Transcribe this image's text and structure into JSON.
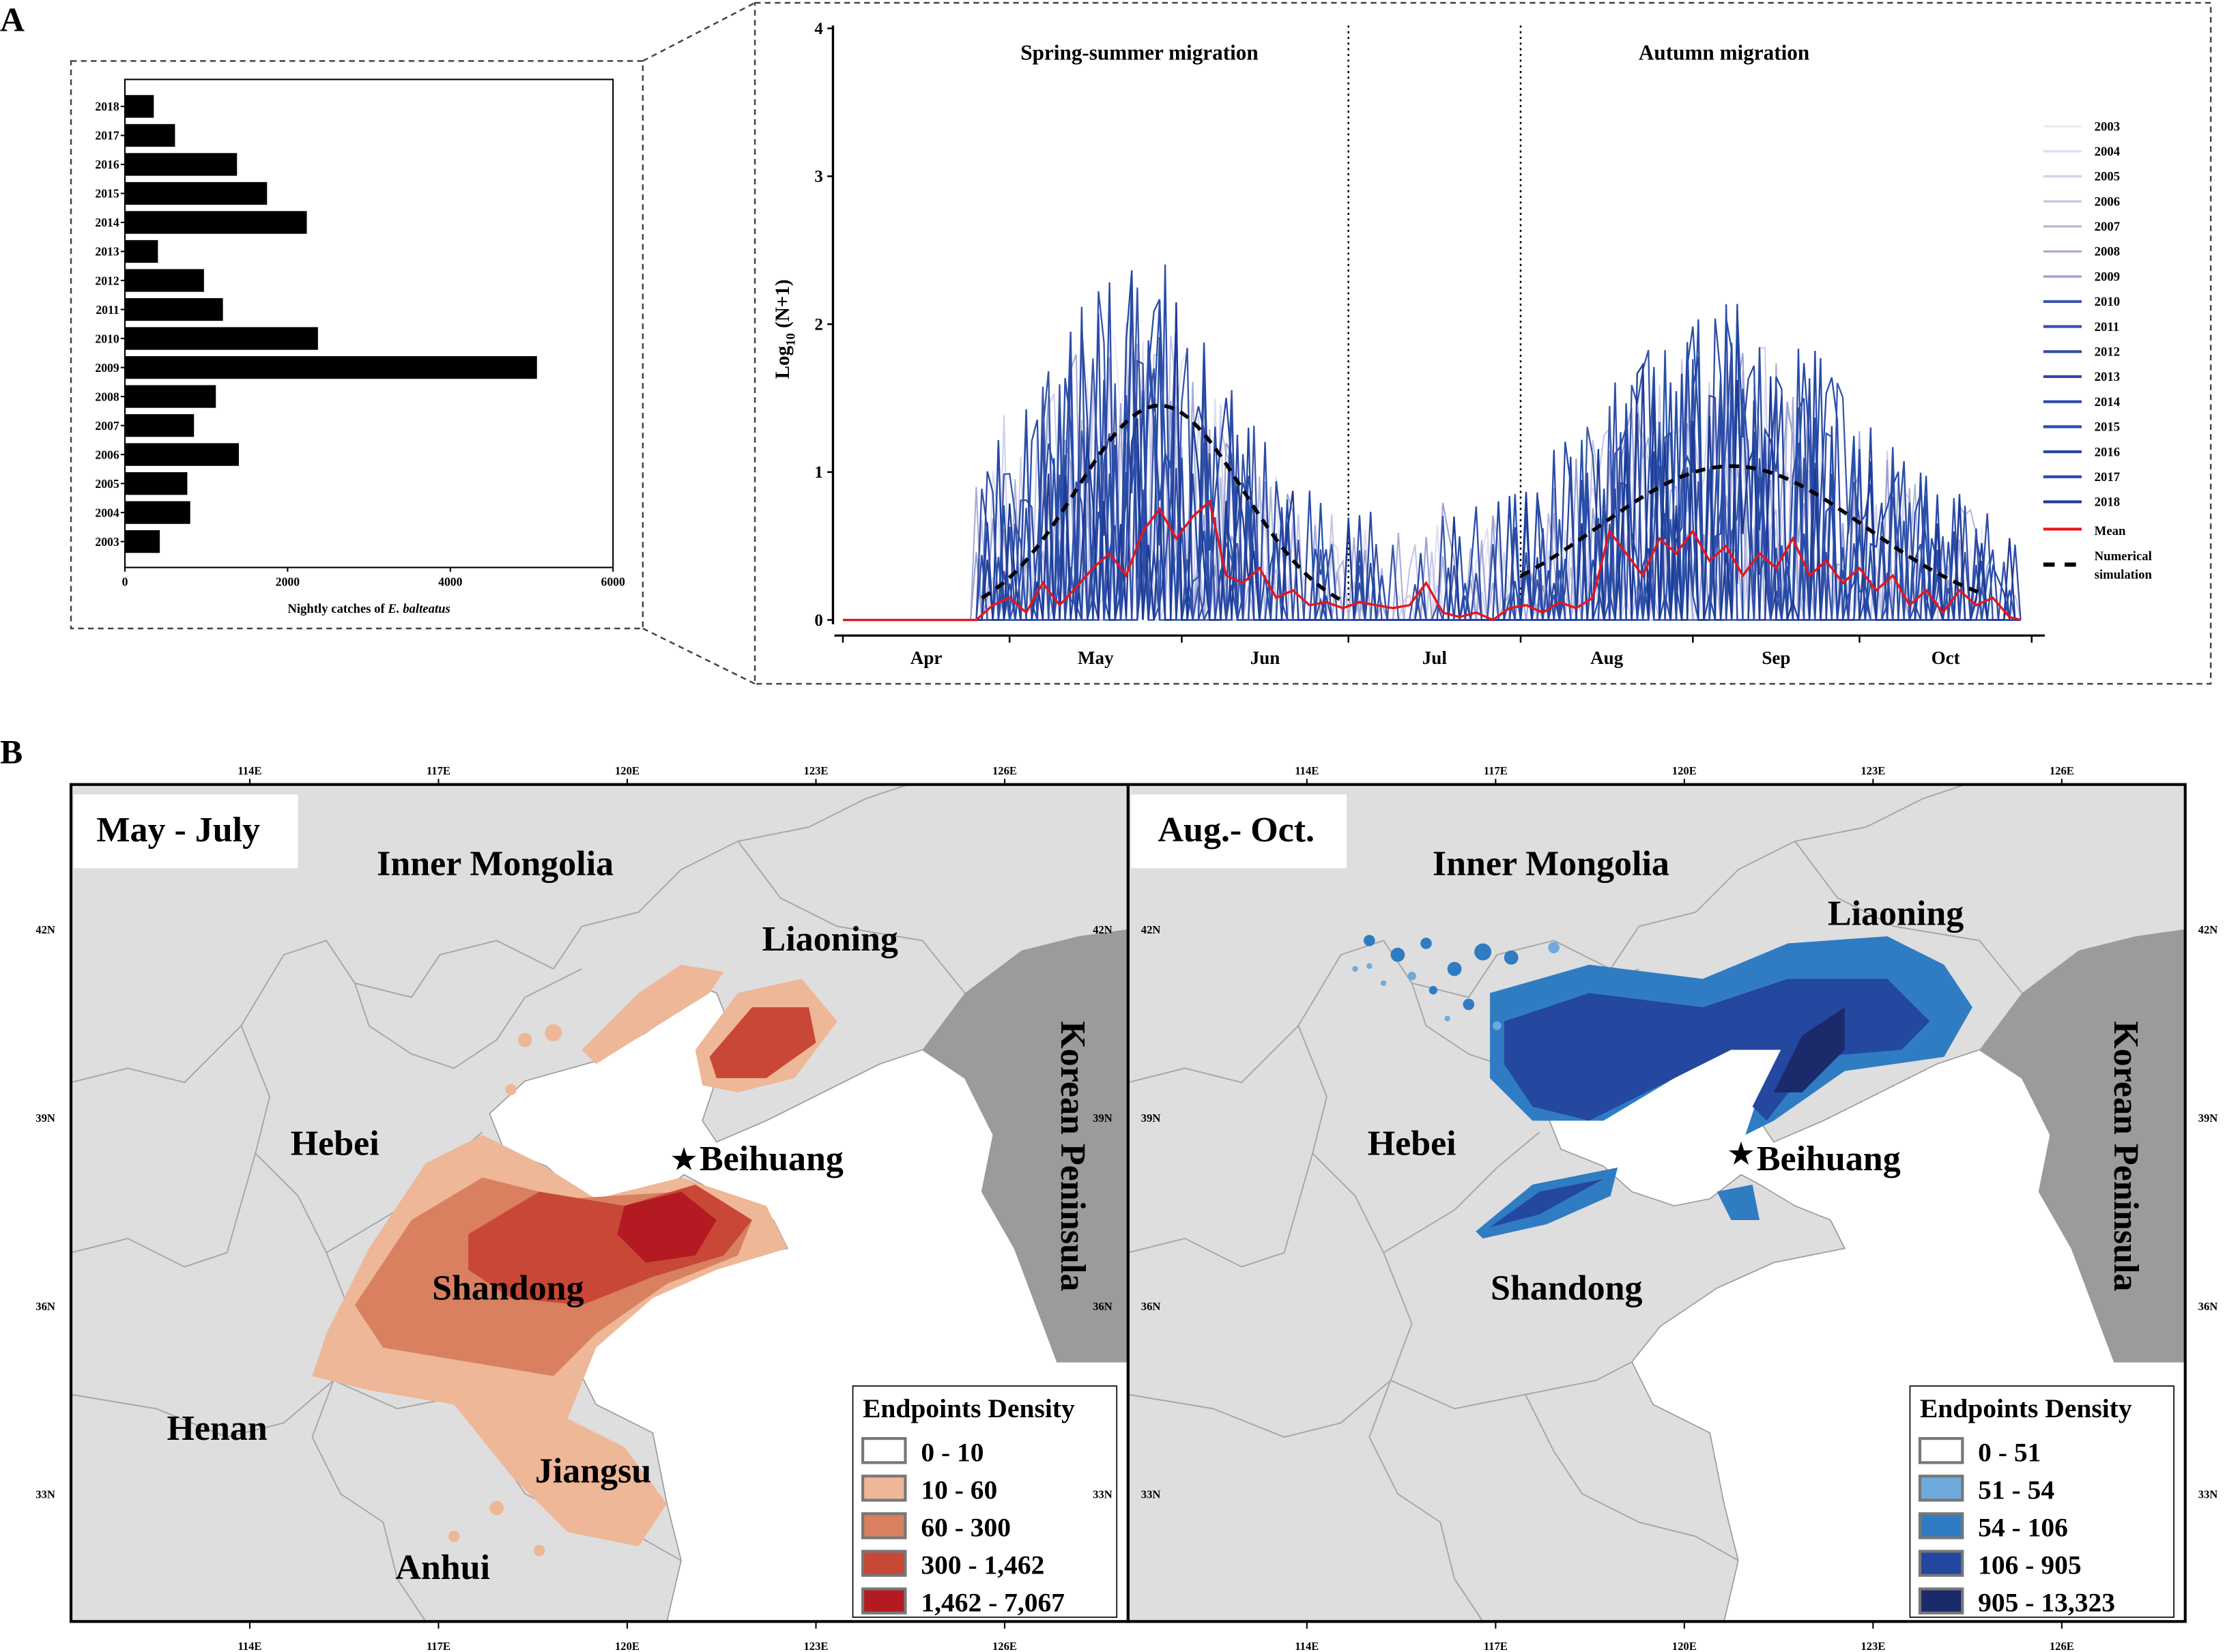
{
  "panel_labels": {
    "a": "A",
    "b": "B"
  },
  "chart_data": [
    {
      "type": "bar",
      "orientation": "horizontal",
      "categories": [
        "2018",
        "2017",
        "2016",
        "2015",
        "2014",
        "2013",
        "2012",
        "2011",
        "2010",
        "2009",
        "2008",
        "2007",
        "2006",
        "2005",
        "2004",
        "2003"
      ],
      "values": [
        355,
        616,
        1378,
        1747,
        2236,
        406,
        972,
        1205,
        2373,
        5065,
        1118,
        849,
        1401,
        767,
        803,
        429
      ],
      "xlabel_prefix": "Nightly catches of ",
      "xlabel_species": "E. balteatus",
      "xlim": [
        0,
        6000
      ],
      "xticks": [
        "0",
        "2000",
        "4000",
        "6000"
      ],
      "bar_color": "#000000"
    },
    {
      "type": "line",
      "ylabel_main": "Log",
      "ylabel_sub": "10",
      "ylabel_rest": " (N+1)",
      "ylim": [
        0,
        4
      ],
      "yticks": [
        "0",
        "1",
        "2",
        "3",
        "4"
      ],
      "months": [
        "Apr",
        "May",
        "Jun",
        "Jul",
        "Aug",
        "Sep",
        "Oct"
      ],
      "x_unit": "day since Apr 1",
      "xlim": [
        0,
        214
      ],
      "period_labels": [
        "Spring-summer migration",
        "Autumn migration"
      ],
      "period_dividers_day": [
        91,
        122
      ],
      "series": [
        {
          "name": "2003",
          "color": "#ebebf6"
        },
        {
          "name": "2004",
          "color": "#dedef0"
        },
        {
          "name": "2005",
          "color": "#d1d2ea"
        },
        {
          "name": "2006",
          "color": "#c3c5e4"
        },
        {
          "name": "2007",
          "color": "#b5b8dd"
        },
        {
          "name": "2008",
          "color": "#a8acd8"
        },
        {
          "name": "2009",
          "color": "#9ca2d3"
        },
        {
          "name": "2010",
          "color": "#3b57a9"
        },
        {
          "name": "2011",
          "color": "#3552a8"
        },
        {
          "name": "2012",
          "color": "#2f4da6"
        },
        {
          "name": "2013",
          "color": "#2b4ba5"
        },
        {
          "name": "2014",
          "color": "#2a4ca7"
        },
        {
          "name": "2015",
          "color": "#2650ab"
        },
        {
          "name": "2016",
          "color": "#2448a3"
        },
        {
          "name": "2017",
          "color": "#2a4ca8"
        },
        {
          "name": "2018",
          "color": "#1d3a94"
        }
      ],
      "mean": {
        "name": "Mean",
        "color": "#e8141c",
        "days": [
          0,
          24,
          27,
          30,
          33,
          36,
          39,
          42,
          45,
          48,
          51,
          54,
          57,
          60,
          63,
          66,
          69,
          72,
          75,
          78,
          81,
          84,
          87,
          90,
          93,
          96,
          99,
          102,
          105,
          108,
          111,
          114,
          117,
          120,
          123,
          126,
          129,
          132,
          135,
          138,
          141,
          144,
          147,
          150,
          153,
          156,
          159,
          162,
          165,
          168,
          171,
          174,
          177,
          180,
          183,
          186,
          189,
          192,
          195,
          198,
          201,
          204,
          207,
          210,
          212
        ],
        "values": [
          0,
          0,
          0.1,
          0.15,
          0.05,
          0.25,
          0.1,
          0.22,
          0.35,
          0.45,
          0.3,
          0.6,
          0.75,
          0.55,
          0.7,
          0.8,
          0.3,
          0.25,
          0.35,
          0.15,
          0.2,
          0.1,
          0.12,
          0.08,
          0.12,
          0.1,
          0.08,
          0.1,
          0.25,
          0.05,
          0.02,
          0.05,
          0,
          0.08,
          0.1,
          0.05,
          0.12,
          0.08,
          0.15,
          0.6,
          0.45,
          0.3,
          0.55,
          0.45,
          0.6,
          0.4,
          0.5,
          0.3,
          0.45,
          0.35,
          0.55,
          0.3,
          0.4,
          0.25,
          0.35,
          0.2,
          0.3,
          0.1,
          0.2,
          0.05,
          0.2,
          0.1,
          0.15,
          0.02,
          0
        ]
      },
      "simulation": {
        "name_line1": "Numerical",
        "name_line2": "simulation",
        "color": "#000000",
        "peaks": [
          {
            "start_day": 25,
            "end_day": 90,
            "peak_day": 57,
            "peak_value": 1.45,
            "sd": 15
          },
          {
            "start_day": 122,
            "end_day": 205,
            "peak_day": 160,
            "peak_value": 1.04,
            "sd": 24
          }
        ]
      }
    }
  ],
  "maps": {
    "lon_ticks": [
      "114E",
      "117E",
      "120E",
      "123E",
      "126E"
    ],
    "lat_ticks": [
      "42N",
      "39N",
      "36N",
      "33N"
    ],
    "left": {
      "title": "May - July",
      "places": {
        "inner_mongolia": "Inner Mongolia",
        "liaoning": "Liaoning",
        "hebei": "Hebei",
        "beihuang": "Beihuang",
        "shandong": "Shandong",
        "henan": "Henan",
        "jiangsu": "Jiangsu",
        "anhui": "Anhui",
        "korea": "Korean Peninsula"
      },
      "legend": {
        "title": "Endpoints Density",
        "items": [
          {
            "label": "0 - 10",
            "color": "#ffffff"
          },
          {
            "label": "10 - 60",
            "color": "#eeb797"
          },
          {
            "label": "60 - 300",
            "color": "#d8805f"
          },
          {
            "label": "300 - 1,462",
            "color": "#c84736"
          },
          {
            "label": "1,462 - 7,067",
            "color": "#b41a22"
          }
        ]
      }
    },
    "right": {
      "title": "Aug.- Oct.",
      "places": {
        "inner_mongolia": "Inner Mongolia",
        "liaoning": "Liaoning",
        "hebei": "Hebei",
        "beihuang": "Beihuang",
        "shandong": "Shandong",
        "korea": "Korean Peninsula"
      },
      "legend": {
        "title": "Endpoints Density",
        "items": [
          {
            "label": "0 - 51",
            "color": "#ffffff"
          },
          {
            "label": "51 - 54",
            "color": "#6eaadb"
          },
          {
            "label": "54 - 106",
            "color": "#2f7cc3"
          },
          {
            "label": "106 - 905",
            "color": "#2447a0"
          },
          {
            "label": "905 - 13,323",
            "color": "#1b2b6a"
          }
        ]
      }
    }
  }
}
